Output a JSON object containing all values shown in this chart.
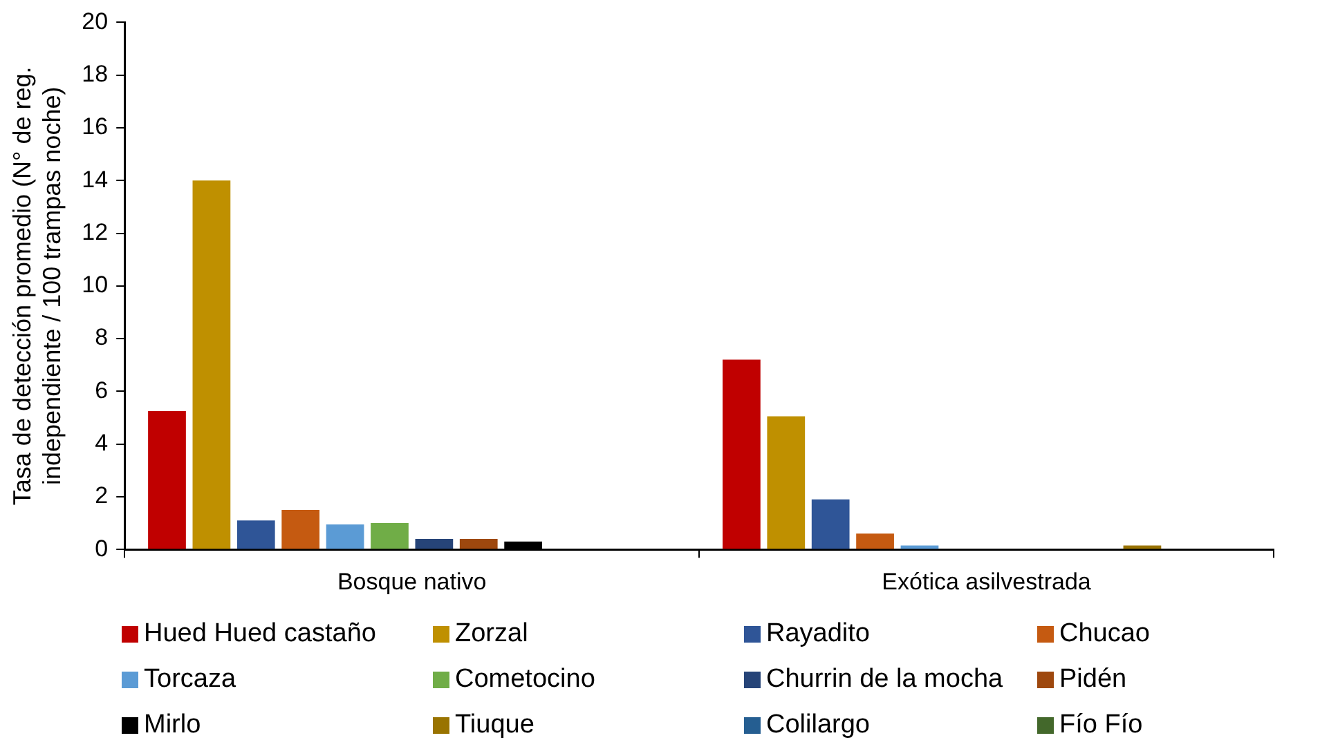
{
  "chart_data": {
    "type": "bar",
    "ylabel": "Tasa de detección promedio (N° de reg. independiente / 100 trampas noche)",
    "categories": [
      "Bosque nativo",
      "Exótica asilvestrada"
    ],
    "series": [
      {
        "name": "Hued Hued castaño",
        "color": "#c00000",
        "values": [
          5.25,
          7.2
        ]
      },
      {
        "name": "Zorzal",
        "color": "#bf9000",
        "values": [
          14,
          5.05
        ]
      },
      {
        "name": "Rayadito",
        "color": "#2f5597",
        "values": [
          1.1,
          1.9
        ]
      },
      {
        "name": "Chucao",
        "color": "#c55a11",
        "values": [
          1.5,
          0.6
        ]
      },
      {
        "name": "Torcaza",
        "color": "#5b9bd5",
        "values": [
          0.95,
          0.15
        ]
      },
      {
        "name": "Cometocino",
        "color": "#70ad47",
        "values": [
          1.0,
          0
        ]
      },
      {
        "name": "Churrin de la mocha",
        "color": "#264478",
        "values": [
          0.4,
          0
        ]
      },
      {
        "name": "Pidén",
        "color": "#9e480e",
        "values": [
          0.4,
          0
        ]
      },
      {
        "name": "Mirlo",
        "color": "#000000",
        "values": [
          0.3,
          0
        ]
      },
      {
        "name": "Tiuque",
        "color": "#997300",
        "values": [
          0,
          0.15
        ]
      },
      {
        "name": "Colilargo",
        "color": "#255e91",
        "values": [
          0,
          0
        ]
      },
      {
        "name": "Fío Fío",
        "color": "#43682b",
        "values": [
          0,
          0
        ]
      }
    ],
    "ylim": [
      0,
      20
    ],
    "yticks": [
      0,
      2,
      4,
      6,
      8,
      10,
      12,
      14,
      16,
      18,
      20
    ],
    "grid": false,
    "legend": "bottom"
  }
}
